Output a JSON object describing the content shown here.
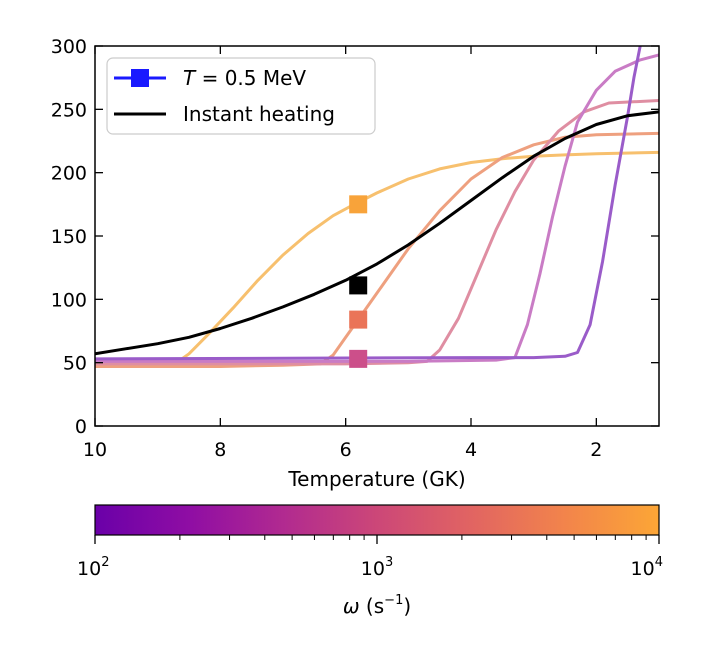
{
  "chart_data": {
    "type": "line",
    "xlabel": "Temperature (GK)",
    "ylabel": "",
    "xlim": [
      10,
      1
    ],
    "ylim": [
      0,
      300
    ],
    "x_ticks": [
      10,
      8,
      6,
      4,
      2
    ],
    "x_tick_labels": [
      "10",
      "8",
      "6",
      "4",
      "2"
    ],
    "y_ticks": [
      0,
      50,
      100,
      150,
      200,
      250,
      300
    ],
    "y_tick_labels": [
      "0",
      "50",
      "100",
      "150",
      "200",
      "250",
      "300"
    ],
    "grid": false,
    "legend": {
      "placement": "top-left",
      "entries": [
        {
          "label_prefix": "T",
          "label_suffix": " = 0.5 MeV",
          "color": "#1a1aff",
          "marker": "square"
        },
        {
          "label": "Instant heating",
          "color": "#000000",
          "marker": "none"
        }
      ]
    },
    "series": [
      {
        "omega": 10000,
        "color": "#f7c06e",
        "points": [
          [
            10,
            48
          ],
          [
            9.5,
            48
          ],
          [
            9.0,
            49
          ],
          [
            8.7,
            50
          ],
          [
            8.5,
            57
          ],
          [
            8.2,
            72
          ],
          [
            7.8,
            93
          ],
          [
            7.4,
            115
          ],
          [
            7.0,
            135
          ],
          [
            6.6,
            152
          ],
          [
            6.2,
            166
          ],
          [
            5.9,
            174
          ],
          [
            5.5,
            184
          ],
          [
            5.0,
            195
          ],
          [
            4.5,
            203
          ],
          [
            4.0,
            208
          ],
          [
            3.5,
            211
          ],
          [
            3.0,
            213
          ],
          [
            2.5,
            214
          ],
          [
            2.0,
            215
          ],
          [
            1.0,
            216
          ]
        ],
        "marker": [
          5.8,
          175
        ]
      },
      {
        "omega": 3000,
        "color": "#eea07f",
        "points": [
          [
            10,
            47
          ],
          [
            8.0,
            47
          ],
          [
            7.0,
            48
          ],
          [
            6.4,
            49
          ],
          [
            6.2,
            56
          ],
          [
            6.0,
            70
          ],
          [
            5.8,
            84
          ],
          [
            5.5,
            105
          ],
          [
            5.0,
            140
          ],
          [
            4.5,
            170
          ],
          [
            4.0,
            195
          ],
          [
            3.5,
            212
          ],
          [
            3.0,
            222
          ],
          [
            2.5,
            228
          ],
          [
            2.0,
            230
          ],
          [
            1.0,
            231
          ]
        ],
        "marker": [
          5.8,
          84
        ]
      },
      {
        "omega": 1000,
        "color": "#df8ea2",
        "points": [
          [
            10,
            49
          ],
          [
            6.0,
            49
          ],
          [
            5.0,
            50
          ],
          [
            4.7,
            51
          ],
          [
            4.5,
            60
          ],
          [
            4.2,
            85
          ],
          [
            3.9,
            120
          ],
          [
            3.6,
            155
          ],
          [
            3.3,
            185
          ],
          [
            3.0,
            210
          ],
          [
            2.6,
            233
          ],
          [
            2.2,
            248
          ],
          [
            1.8,
            255
          ],
          [
            1.0,
            257
          ]
        ]
      },
      {
        "omega": 300,
        "color": "#c97cc5",
        "points": [
          [
            10,
            51
          ],
          [
            5.0,
            51
          ],
          [
            3.6,
            52
          ],
          [
            3.3,
            54
          ],
          [
            3.1,
            80
          ],
          [
            2.9,
            120
          ],
          [
            2.7,
            165
          ],
          [
            2.5,
            205
          ],
          [
            2.3,
            240
          ],
          [
            2.0,
            265
          ],
          [
            1.7,
            280
          ],
          [
            1.3,
            289
          ],
          [
            1.0,
            293
          ]
        ]
      },
      {
        "omega": 100,
        "color": "#9a5cc9",
        "points": [
          [
            10,
            53
          ],
          [
            4.0,
            54
          ],
          [
            3.0,
            54
          ],
          [
            2.5,
            55
          ],
          [
            2.3,
            58
          ],
          [
            2.1,
            80
          ],
          [
            1.9,
            130
          ],
          [
            1.7,
            190
          ],
          [
            1.5,
            245
          ],
          [
            1.4,
            275
          ],
          [
            1.3,
            300
          ]
        ]
      }
    ],
    "instant_heating": {
      "color": "#000000",
      "points": [
        [
          10,
          57
        ],
        [
          9.5,
          61
        ],
        [
          9.0,
          65
        ],
        [
          8.5,
          70
        ],
        [
          8.0,
          77
        ],
        [
          7.5,
          85
        ],
        [
          7.0,
          94
        ],
        [
          6.5,
          104
        ],
        [
          6.0,
          115
        ],
        [
          5.5,
          128
        ],
        [
          5.0,
          143
        ],
        [
          4.5,
          160
        ],
        [
          4.0,
          178
        ],
        [
          3.5,
          196
        ],
        [
          3.0,
          213
        ],
        [
          2.5,
          227
        ],
        [
          2.0,
          238
        ],
        [
          1.5,
          245
        ],
        [
          1.0,
          248
        ]
      ],
      "marker": [
        5.8,
        111
      ]
    },
    "marker_overlap": {
      "color": "#cc4f8a",
      "point": [
        5.8,
        53
      ]
    },
    "colorbar": {
      "label_prefix": "ω",
      "label_suffix": " (s",
      "label_exp": "−1",
      "label_close": ")",
      "scale": "log",
      "range": [
        100,
        10000
      ],
      "major_ticks": [
        {
          "value": 100,
          "base": "10",
          "exp": "2"
        },
        {
          "value": 1000,
          "base": "10",
          "exp": "3"
        },
        {
          "value": 10000,
          "base": "10",
          "exp": "4"
        }
      ],
      "colors": [
        "#6a00a8",
        "#8f0da4",
        "#b12a90",
        "#cc4778",
        "#e16462",
        "#f2844b",
        "#fca636"
      ]
    }
  }
}
